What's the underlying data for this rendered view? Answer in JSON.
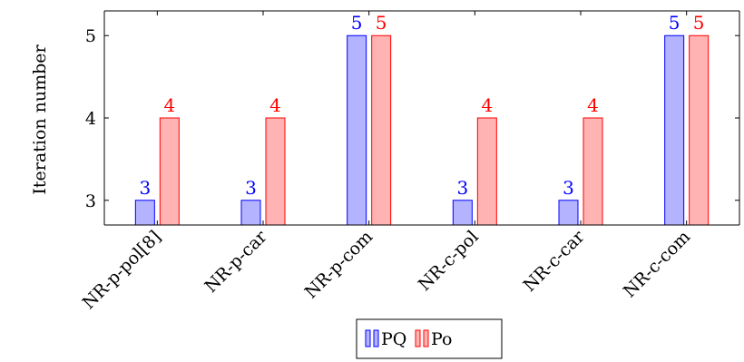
{
  "chart_data": {
    "type": "bar",
    "title": "",
    "xlabel": "",
    "ylabel": "Iteration number",
    "categories": [
      "NR-p-pol[8]",
      "NR-p-car",
      "NR-p-com",
      "NR-c-pol",
      "NR-c-car",
      "NR-c-com"
    ],
    "series": [
      {
        "name": "PQ",
        "values": [
          3,
          3,
          5,
          3,
          3,
          5
        ],
        "fill": "#b3b3ff",
        "stroke": "#0000ff",
        "label_color": "#0000ff"
      },
      {
        "name": "Po",
        "values": [
          4,
          4,
          5,
          4,
          4,
          5
        ],
        "fill": "#ffb3b3",
        "stroke": "#ff0000",
        "label_color": "#ff0000"
      }
    ],
    "yticks": [
      3,
      4,
      5
    ],
    "ylim": [
      2.7,
      5.3
    ],
    "grid": false,
    "legend_position": "bottom-center",
    "data_labels": true
  }
}
